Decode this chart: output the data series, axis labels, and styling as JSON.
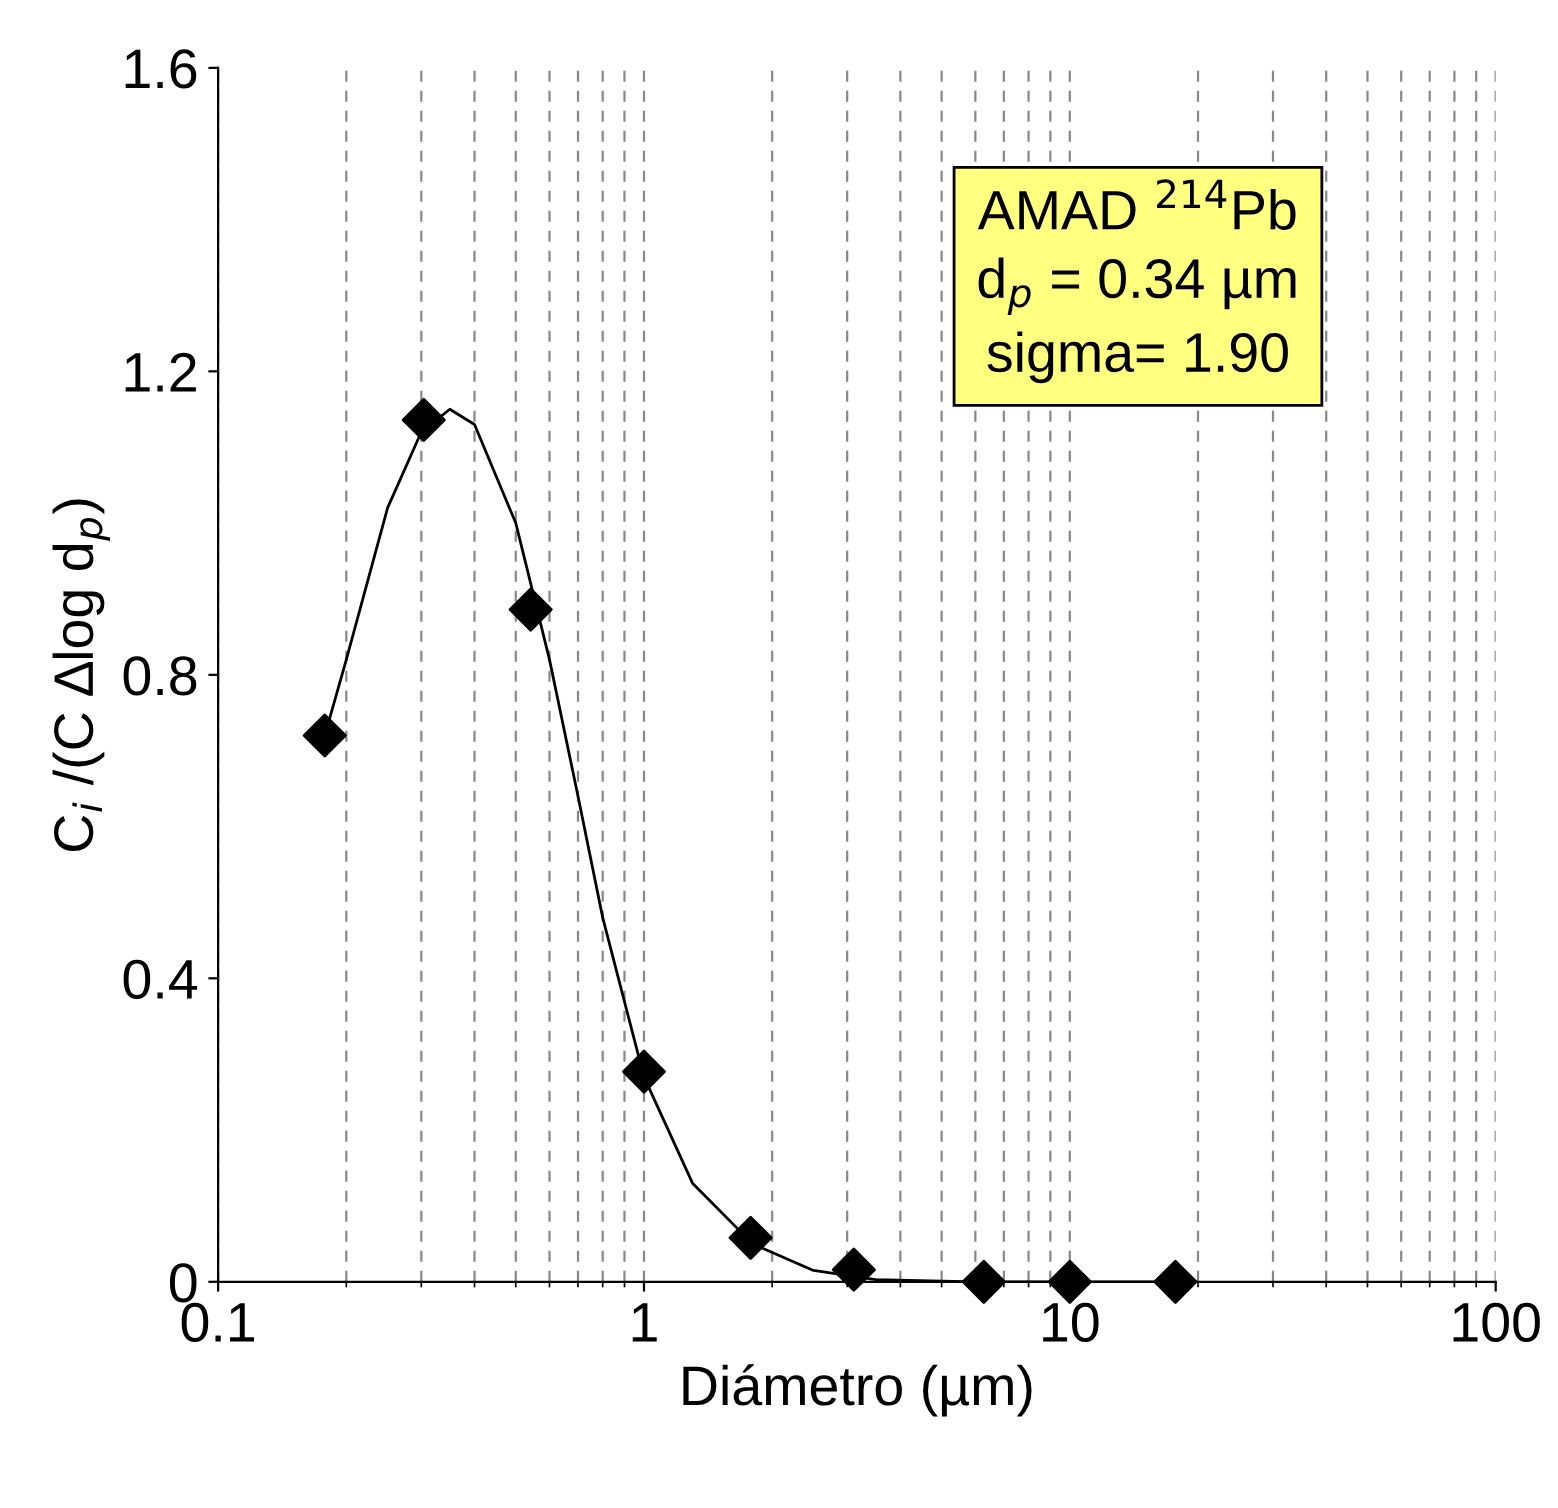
{
  "chart_data": {
    "type": "scatter",
    "xlabel": "Diámetro (µm)",
    "ylabel": "C$_{i}$ /(C ∆log d$_{p}$)",
    "log": "x",
    "xlim": [
      0.1,
      100
    ],
    "xticks": [
      0.1,
      1,
      10,
      100
    ],
    "ylim": [
      0,
      1.6
    ],
    "yticks": [
      0,
      0.4,
      0.8,
      1.2,
      1.6
    ],
    "grid": "x",
    "annotations": [
      "AMAD $^{214}$Pb\nd$_{p}$ = 0.34 µm\nsigma= 1.90"
    ],
    "series": [
      {
        "type": "line",
        "color": "#000000",
        "marker": "none",
        "line_style": "solid",
        "x": [
          0.178,
          0.2,
          0.25,
          0.3,
          0.35,
          0.4,
          0.5,
          0.6,
          0.7,
          0.8,
          1.0,
          1.3,
          1.8,
          2.5,
          3.5,
          6,
          18
        ],
        "values": [
          0.72,
          0.82,
          1.02,
          1.12,
          1.15,
          1.13,
          1.0,
          0.82,
          0.64,
          0.48,
          0.27,
          0.13,
          0.05,
          0.015,
          0.003,
          0,
          0
        ]
      },
      {
        "color": "#000000",
        "marker": "diamond",
        "x": [
          0.178,
          0.304,
          0.542,
          1.0,
          1.78,
          3.11,
          6.28,
          10,
          17.7
        ],
        "values": [
          0.72,
          1.136,
          0.886,
          0.277,
          0.058,
          0.016,
          0,
          0,
          0
        ]
      }
    ]
  }
}
